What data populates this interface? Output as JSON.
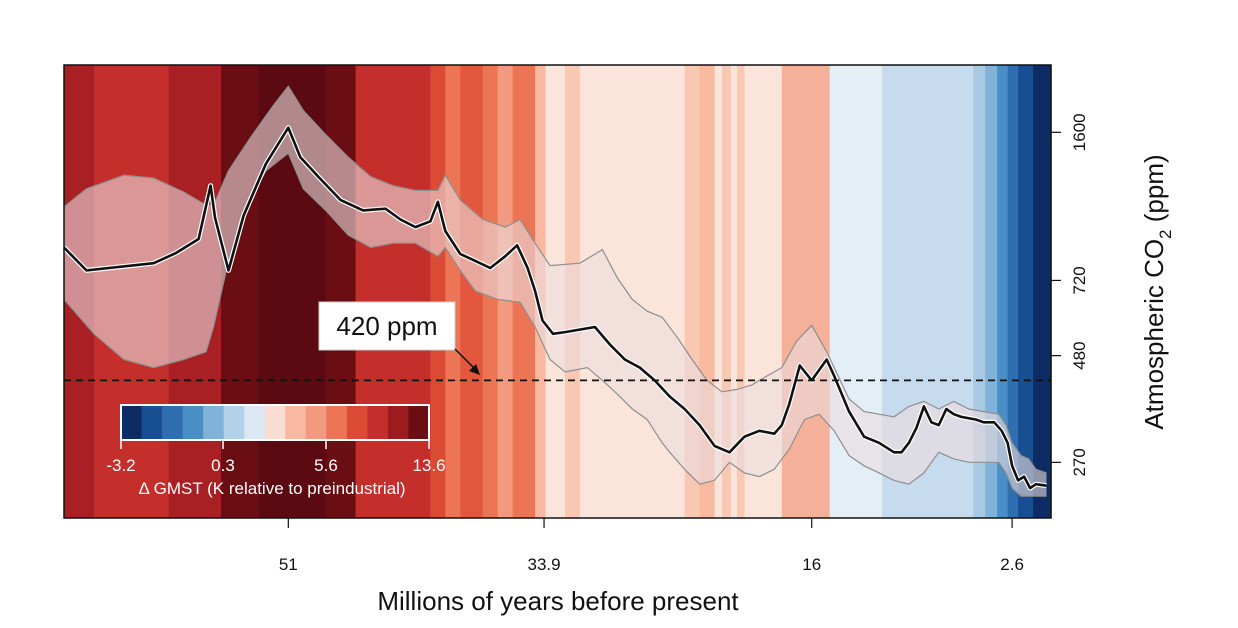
{
  "chart_data": {
    "type": "line",
    "xlabel": "Millions of years before present",
    "ylabel_main": "Atmospheric CO",
    "ylabel_sub": "2",
    "ylabel_unit": " (ppm)",
    "x_ticks": [
      "51",
      "33.9",
      "16",
      "2.6"
    ],
    "y_ticks": [
      "1600",
      "720",
      "480",
      "270"
    ],
    "reference_line": {
      "value": 420,
      "label": "420 ppm"
    },
    "legend": {
      "title": "Δ GMST (K relative to preindustrial)",
      "tick_labels": [
        "-3.2",
        "0.3",
        "5.6",
        "13.6"
      ],
      "colors": [
        "#0c2c63",
        "#174f92",
        "#2f6eb0",
        "#4a8ec6",
        "#7fb3da",
        "#b3d1e8",
        "#dbe8f3",
        "#f9ddd2",
        "#f8b9a0",
        "#f29a7f",
        "#ec7555",
        "#db4a35",
        "#c42f2c",
        "#9c1b1f",
        "#6a0e13"
      ]
    },
    "stripes": [
      {
        "start": 66.0,
        "end": 64.0,
        "color": "#a82023"
      },
      {
        "start": 64.0,
        "end": 59.0,
        "color": "#c42f2c"
      },
      {
        "start": 59.0,
        "end": 55.5,
        "color": "#a82023"
      },
      {
        "start": 55.5,
        "end": 53.0,
        "color": "#6a0e13"
      },
      {
        "start": 53.0,
        "end": 48.5,
        "color": "#5a0a10"
      },
      {
        "start": 48.5,
        "end": 46.5,
        "color": "#6a0e13"
      },
      {
        "start": 46.5,
        "end": 41.5,
        "color": "#c42f2c"
      },
      {
        "start": 41.5,
        "end": 40.5,
        "color": "#db4a35"
      },
      {
        "start": 40.5,
        "end": 39.5,
        "color": "#ec7555"
      },
      {
        "start": 39.5,
        "end": 38.0,
        "color": "#e2573d"
      },
      {
        "start": 38.0,
        "end": 37.0,
        "color": "#ec7555"
      },
      {
        "start": 37.0,
        "end": 36.0,
        "color": "#f29a7f"
      },
      {
        "start": 36.0,
        "end": 34.5,
        "color": "#ec7555"
      },
      {
        "start": 34.5,
        "end": 33.8,
        "color": "#f8b9a0"
      },
      {
        "start": 33.8,
        "end": 32.5,
        "color": "#fbe5da"
      },
      {
        "start": 32.5,
        "end": 31.5,
        "color": "#f8c8b3"
      },
      {
        "start": 31.5,
        "end": 24.5,
        "color": "#fbe5da"
      },
      {
        "start": 24.5,
        "end": 23.5,
        "color": "#f8c8b3"
      },
      {
        "start": 23.5,
        "end": 22.5,
        "color": "#f8b9a0"
      },
      {
        "start": 22.5,
        "end": 22.0,
        "color": "#fbe5da"
      },
      {
        "start": 22.0,
        "end": 21.4,
        "color": "#f8c8b3"
      },
      {
        "start": 21.4,
        "end": 21.0,
        "color": "#fbe5da"
      },
      {
        "start": 21.0,
        "end": 20.5,
        "color": "#f8c8b3"
      },
      {
        "start": 20.5,
        "end": 18.0,
        "color": "#fbe5da"
      },
      {
        "start": 18.0,
        "end": 14.8,
        "color": "#f4b098"
      },
      {
        "start": 14.8,
        "end": 11.3,
        "color": "#e4eef7"
      },
      {
        "start": 11.3,
        "end": 5.2,
        "color": "#c7dbee"
      },
      {
        "start": 5.2,
        "end": 4.4,
        "color": "#a9c9e3"
      },
      {
        "start": 4.4,
        "end": 3.6,
        "color": "#7fb3da"
      },
      {
        "start": 3.6,
        "end": 2.9,
        "color": "#4a8ec6"
      },
      {
        "start": 2.9,
        "end": 2.2,
        "color": "#2f6eb0"
      },
      {
        "start": 2.2,
        "end": 1.2,
        "color": "#174f92"
      },
      {
        "start": 1.2,
        "end": 0.0,
        "color": "#0c2c63"
      }
    ],
    "series": [
      {
        "name": "CO2 median",
        "x": [
          66.0,
          64.5,
          63.0,
          60.0,
          58.5,
          57.0,
          56.2,
          55.9,
          55.0,
          54.0,
          52.5,
          51.0,
          50.2,
          49.0,
          47.5,
          46.0,
          44.5,
          43.5,
          42.5,
          41.5,
          41.0,
          40.5,
          39.5,
          38.5,
          37.5,
          36.5,
          35.7,
          35.0,
          34.5,
          34.0,
          33.3,
          32.5,
          30.5,
          29.5,
          28.5,
          27.5,
          26.5,
          25.5,
          24.5,
          23.5,
          22.5,
          21.5,
          20.5,
          19.5,
          18.5,
          18.0,
          17.5,
          16.8,
          16.0,
          15.0,
          14.5,
          13.5,
          12.5,
          11.5,
          10.5,
          10.0,
          9.5,
          9.0,
          8.5,
          8.0,
          7.5,
          7.0,
          6.5,
          6.0,
          5.0,
          4.5,
          3.8,
          3.3,
          2.9,
          2.6,
          2.2,
          1.8,
          1.4,
          1.0,
          0.3
        ],
        "y": [
          860,
          760,
          770,
          790,
          835,
          900,
          1200,
          1010,
          760,
          1020,
          1350,
          1640,
          1400,
          1260,
          1110,
          1050,
          1060,
          1000,
          960,
          990,
          1100,
          940,
          830,
          800,
          770,
          820,
          870,
          770,
          680,
          580,
          540,
          545,
          560,
          510,
          470,
          450,
          420,
          385,
          360,
          330,
          295,
          285,
          310,
          320,
          315,
          330,
          370,
          455,
          420,
          470,
          430,
          355,
          310,
          300,
          285,
          285,
          300,
          325,
          365,
          335,
          330,
          360,
          350,
          345,
          340,
          335,
          335,
          320,
          300,
          265,
          245,
          250,
          235,
          240,
          238
        ]
      },
      {
        "name": "CO2 upper",
        "x": [
          66.0,
          64.5,
          62.0,
          60.0,
          58.0,
          56.5,
          56.0,
          55.0,
          53.5,
          52.0,
          51.0,
          50.0,
          48.5,
          47.0,
          45.5,
          44.0,
          42.5,
          41.0,
          40.5,
          39.5,
          38.0,
          36.5,
          35.5,
          34.5,
          33.5,
          31.5,
          30.0,
          29.0,
          28.0,
          27.0,
          26.0,
          25.0,
          24.0,
          23.0,
          22.0,
          21.0,
          20.0,
          19.0,
          18.0,
          17.0,
          16.0,
          15.0,
          14.5,
          13.5,
          12.5,
          11.5,
          10.5,
          9.5,
          8.5,
          7.5,
          6.5,
          5.5,
          4.5,
          3.5,
          3.0,
          2.6,
          2.0,
          1.5,
          1.0,
          0.3
        ],
        "y": [
          1070,
          1180,
          1270,
          1250,
          1160,
          1080,
          1080,
          1300,
          1560,
          1850,
          2050,
          1800,
          1580,
          1400,
          1260,
          1200,
          1170,
          1170,
          1270,
          1110,
          1000,
          960,
          1000,
          880,
          780,
          790,
          850,
          730,
          650,
          610,
          590,
          530,
          470,
          420,
          395,
          400,
          410,
          430,
          450,
          520,
          565,
          490,
          450,
          380,
          355,
          350,
          345,
          365,
          375,
          360,
          375,
          360,
          355,
          350,
          330,
          300,
          280,
          275,
          260,
          255
        ]
      },
      {
        "name": "CO2 lower",
        "x": [
          66.0,
          64.0,
          62.0,
          60.0,
          58.0,
          56.5,
          56.0,
          55.0,
          54.0,
          52.5,
          51.0,
          50.0,
          48.5,
          47.0,
          45.5,
          44.0,
          42.5,
          41.0,
          40.5,
          39.5,
          38.5,
          37.0,
          35.5,
          34.5,
          33.5,
          32.5,
          31.0,
          30.0,
          29.0,
          28.0,
          27.0,
          26.0,
          25.5,
          24.5,
          23.5,
          22.5,
          21.5,
          20.5,
          19.5,
          18.5,
          17.5,
          16.5,
          15.5,
          14.5,
          13.5,
          12.5,
          11.5,
          10.5,
          9.5,
          8.5,
          7.5,
          6.5,
          5.5,
          4.5,
          3.5,
          3.0,
          2.6,
          2.0,
          1.5,
          1.0,
          0.3
        ],
        "y": [
          650,
          540,
          470,
          450,
          470,
          490,
          560,
          800,
          1050,
          1300,
          1430,
          1180,
          1050,
          920,
          860,
          880,
          880,
          820,
          860,
          760,
          680,
          650,
          640,
          560,
          470,
          440,
          450,
          420,
          390,
          360,
          340,
          300,
          285,
          260,
          240,
          245,
          270,
          255,
          250,
          260,
          290,
          340,
          350,
          320,
          280,
          265,
          255,
          245,
          240,
          255,
          285,
          275,
          270,
          270,
          270,
          255,
          235,
          225,
          225,
          225,
          225
        ]
      }
    ]
  }
}
